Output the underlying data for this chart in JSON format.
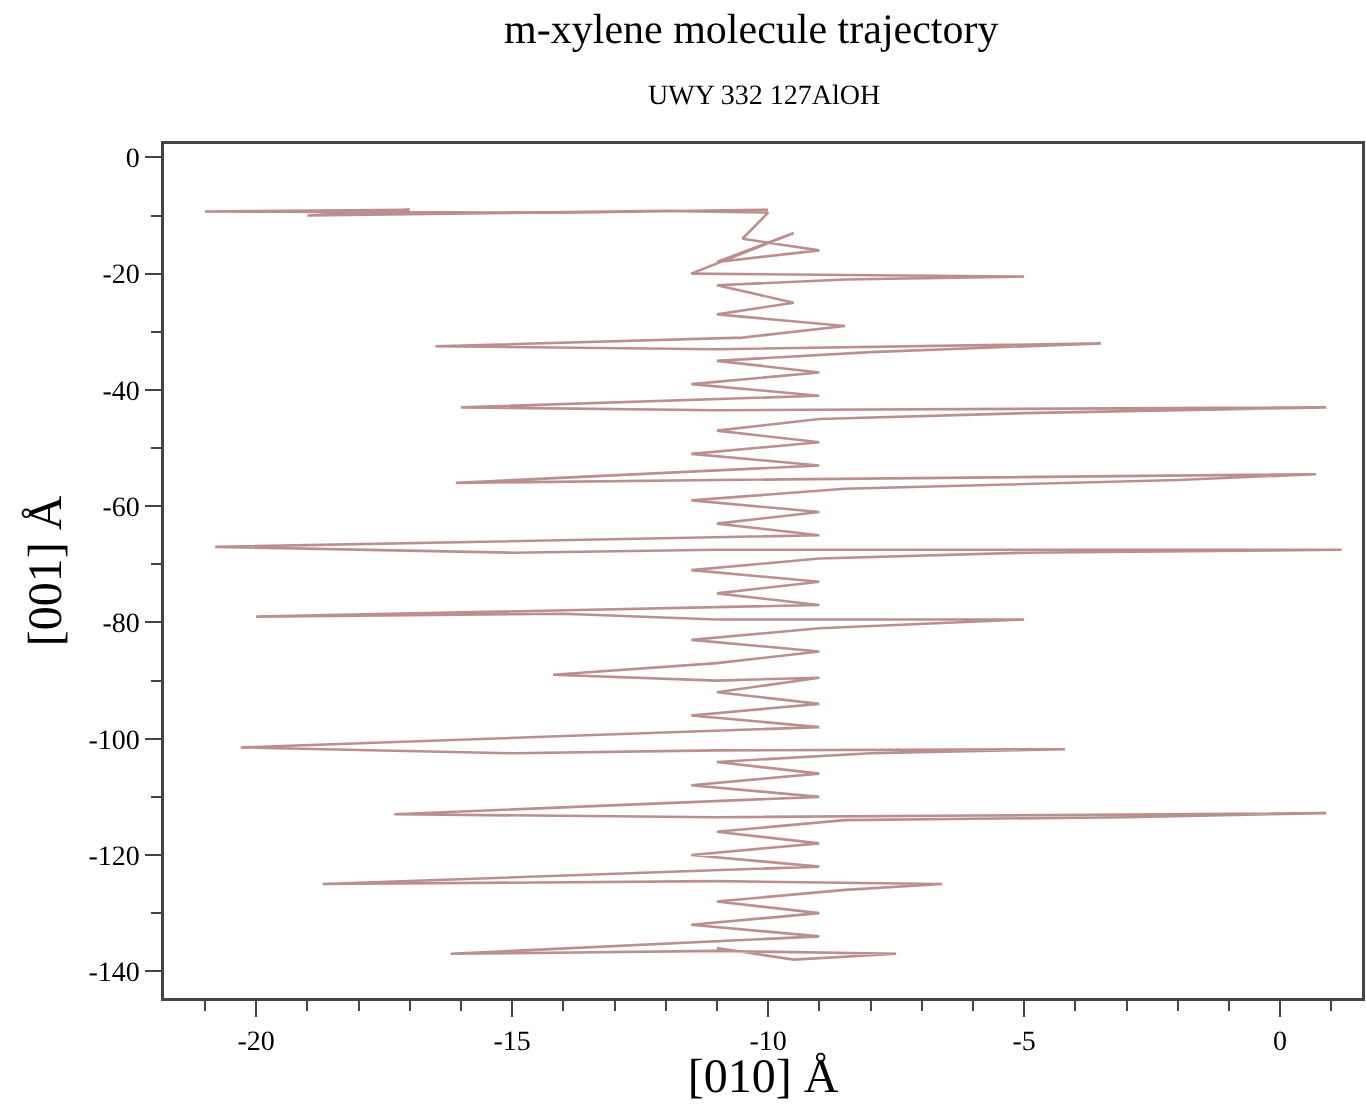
{
  "chart_data": {
    "type": "line",
    "title": "m-xylene molecule trajectory",
    "subtitle": "UWY 332 127AlOH",
    "xlabel": "[010] Å",
    "ylabel": "[001] Å",
    "xlim": [
      -21.8,
      1.6
    ],
    "ylim": [
      -144.6,
      2.3
    ],
    "xticks": [
      {
        "value": -21,
        "label": null
      },
      -20,
      {
        "value": -19,
        "label": null
      },
      {
        "value": -18,
        "label": null
      },
      {
        "value": -17,
        "label": null
      },
      {
        "value": -16,
        "label": null
      },
      -15,
      {
        "value": -14,
        "label": null
      },
      {
        "value": -13,
        "label": null
      },
      {
        "value": -12,
        "label": null
      },
      {
        "value": -11,
        "label": null
      },
      -10,
      {
        "value": -9,
        "label": null
      },
      {
        "value": -8,
        "label": null
      },
      {
        "value": -7,
        "label": null
      },
      {
        "value": -6,
        "label": null
      },
      -5,
      {
        "value": -4,
        "label": null
      },
      {
        "value": -3,
        "label": null
      },
      {
        "value": -2,
        "label": null
      },
      {
        "value": -1,
        "label": null
      },
      0,
      {
        "value": 1,
        "label": null
      }
    ],
    "yticks": [
      0,
      {
        "value": -10,
        "label": null
      },
      -20,
      {
        "value": -30,
        "label": null
      },
      -40,
      {
        "value": -50,
        "label": null
      },
      -60,
      {
        "value": -70,
        "label": null
      },
      -80,
      {
        "value": -90,
        "label": null
      },
      -100,
      {
        "value": -110,
        "label": null
      },
      -120,
      {
        "value": -130,
        "label": null
      },
      -140
    ],
    "grid": false,
    "line_style": "solid",
    "series": [
      {
        "color": "#bc8f8f",
        "x": [
          -10,
          -14,
          -21,
          -17,
          -19,
          -12,
          -10,
          -10.5,
          -9,
          -11,
          -9.5,
          -11.5,
          -5,
          -8.5,
          -11,
          -9.5,
          -11,
          -8.5,
          -10.5,
          -16.5,
          -11,
          -3.5,
          -8,
          -11,
          -9,
          -11.5,
          -9,
          -16,
          -11,
          0.9,
          -5,
          -9,
          -11,
          -9,
          -11.5,
          -9,
          -16.1,
          -11,
          0.7,
          -2,
          -8.5,
          -11.5,
          -9,
          -11,
          -9,
          -20.8,
          -15,
          -11,
          1.2,
          -5,
          -9,
          -11.5,
          -9,
          -11,
          -9,
          -20,
          -14,
          -11,
          -5,
          -9,
          -11.5,
          -9,
          -11,
          -14.2,
          -11,
          -9,
          -11,
          -9,
          -11.5,
          -9,
          -20.3,
          -15,
          -11,
          -4.2,
          -8,
          -11,
          -9,
          -11.5,
          -9,
          -17.3,
          -11,
          0.9,
          -3,
          -8.5,
          -11,
          -9,
          -11.5,
          -9,
          -18.7,
          -11,
          -6.6,
          -8.5,
          -11,
          -9,
          -11.5,
          -9,
          -16.2,
          -11,
          -7.5,
          -9.5,
          -11
        ],
        "values": [
          -9,
          -9.5,
          -9.3,
          -9,
          -10,
          -9.2,
          -9.5,
          -14,
          -16,
          -18,
          -13,
          -20,
          -20.5,
          -21,
          -22,
          -25,
          -27,
          -29,
          -31,
          -32.5,
          -33,
          -32,
          -33.5,
          -35,
          -37,
          -39,
          -41,
          -43,
          -43.5,
          -43,
          -44,
          -45,
          -47,
          -49,
          -51,
          -53,
          -56,
          -55.5,
          -54.5,
          -55.5,
          -57,
          -59,
          -61,
          -63,
          -65,
          -67,
          -68,
          -67.5,
          -67.5,
          -68,
          -69,
          -71,
          -73,
          -75,
          -77,
          -79,
          -78.5,
          -79.5,
          -79.5,
          -81,
          -83,
          -85,
          -87,
          -89,
          -90,
          -89.5,
          -92,
          -94,
          -96,
          -98,
          -101.5,
          -102.5,
          -102,
          -101.8,
          -102.5,
          -104,
          -106,
          -108,
          -110,
          -113,
          -113.5,
          -112.8,
          -113.5,
          -114,
          -116,
          -118,
          -120,
          -122,
          -125,
          -124.5,
          -125,
          -126,
          -128,
          -130,
          -132,
          -134,
          -137,
          -136.5,
          -137,
          -138,
          -136
        ]
      }
    ]
  }
}
